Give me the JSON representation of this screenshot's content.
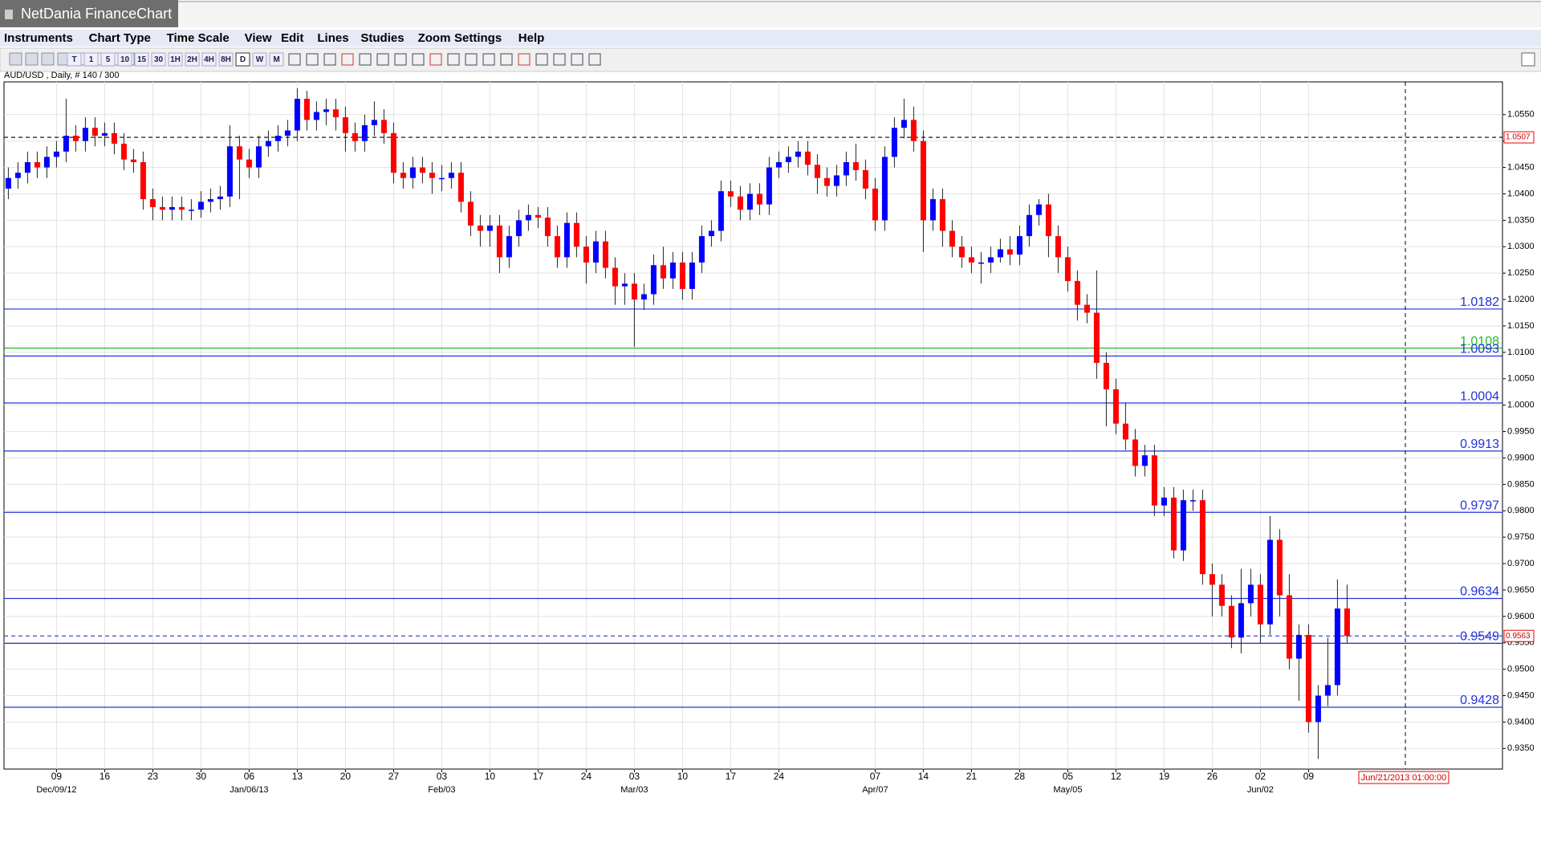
{
  "window": {
    "title": "NetDania FinanceChart"
  },
  "menu": [
    "Instruments",
    "Chart Type",
    "Time Scale",
    "View",
    "Edit",
    "Lines",
    "Studies",
    "Zoom",
    "Settings",
    "Help"
  ],
  "toolbar": {
    "buttons": [
      "T",
      "1",
      "5",
      "10",
      "15",
      "30",
      "1H",
      "2H",
      "4H",
      "8H",
      "D",
      "W",
      "M"
    ]
  },
  "chart_data": {
    "type": "candlestick",
    "subtitle": "AUD/USD , Daily, # 140 / 300",
    "up_color": "#0000ff",
    "down_color": "#ff0000",
    "grid": true,
    "categories": [
      null,
      null,
      null,
      null,
      null,
      "09",
      null,
      null,
      null,
      null,
      "16",
      null,
      null,
      null,
      null,
      "23",
      null,
      null,
      null,
      null,
      "30",
      null,
      null,
      null,
      null,
      "06",
      null,
      null,
      null,
      null,
      "13",
      null,
      null,
      null,
      null,
      "20",
      null,
      null,
      null,
      null,
      "27",
      null,
      null,
      null,
      null,
      "03",
      null,
      null,
      null,
      null,
      "10",
      null,
      null,
      null,
      null,
      "17",
      null,
      null,
      null,
      null,
      "24",
      null,
      null,
      null,
      null,
      "03",
      null,
      null,
      null,
      null,
      "10",
      null,
      null,
      null,
      null,
      "17",
      null,
      null,
      null,
      null,
      "24",
      null,
      null,
      null,
      null,
      null,
      null,
      null,
      null,
      null,
      "07",
      null,
      null,
      null,
      null,
      "14",
      null,
      null,
      null,
      null,
      "21",
      null,
      null,
      null,
      null,
      "28",
      null,
      null,
      null,
      null,
      "05",
      null,
      null,
      null,
      null,
      "12",
      null,
      null,
      null,
      null,
      "19",
      null,
      null,
      null,
      null,
      "26",
      null,
      null,
      null,
      null,
      "02",
      null,
      null,
      null,
      null,
      "09",
      null,
      null,
      null,
      null
    ],
    "periods": [
      null,
      null,
      null,
      null,
      null,
      "Dec/09/12",
      null,
      null,
      null,
      null,
      null,
      null,
      null,
      null,
      null,
      null,
      null,
      null,
      null,
      null,
      null,
      null,
      null,
      null,
      null,
      "Jan/06/13",
      null,
      null,
      null,
      null,
      null,
      null,
      null,
      null,
      null,
      null,
      null,
      null,
      null,
      null,
      null,
      null,
      null,
      null,
      null,
      "Feb/03",
      null,
      null,
      null,
      null,
      null,
      null,
      null,
      null,
      null,
      null,
      null,
      null,
      null,
      null,
      null,
      null,
      null,
      null,
      null,
      "Mar/03",
      null,
      null,
      null,
      null,
      null,
      null,
      null,
      null,
      null,
      null,
      null,
      null,
      null,
      null,
      null,
      null,
      null,
      null,
      null,
      null,
      null,
      null,
      null,
      null,
      "Apr/07",
      null,
      null,
      null,
      null,
      null,
      null,
      null,
      null,
      null,
      null,
      null,
      null,
      null,
      null,
      null,
      null,
      null,
      null,
      null,
      "May/05",
      null,
      null,
      null,
      null,
      null,
      null,
      null,
      null,
      null,
      null,
      null,
      null,
      null,
      null,
      null,
      null,
      null,
      null,
      null,
      "Jun/02",
      null,
      null,
      null,
      null,
      null,
      null,
      null,
      null,
      null
    ],
    "open": [
      1.041,
      1.043,
      1.044,
      1.046,
      1.045,
      1.047,
      1.048,
      1.051,
      1.05,
      1.0525,
      1.051,
      1.0515,
      1.0495,
      1.0465,
      1.046,
      1.039,
      1.0375,
      1.037,
      1.0375,
      1.037,
      1.037,
      1.0385,
      1.039,
      1.0395,
      1.049,
      1.0465,
      1.045,
      1.049,
      1.05,
      1.051,
      1.052,
      1.058,
      1.054,
      1.0555,
      1.056,
      1.0545,
      1.0515,
      1.05,
      1.053,
      1.054,
      1.0515,
      1.044,
      1.043,
      1.045,
      1.044,
      1.043,
      1.043,
      1.044,
      1.0385,
      1.034,
      1.033,
      1.034,
      1.028,
      1.032,
      1.035,
      1.036,
      1.0355,
      1.032,
      1.028,
      1.0345,
      1.03,
      1.027,
      1.031,
      1.026,
      1.0225,
      1.023,
      1.02,
      1.021,
      1.0265,
      1.024,
      1.027,
      1.022,
      1.027,
      1.032,
      1.033,
      1.0405,
      1.0395,
      1.037,
      1.04,
      1.038,
      1.045,
      1.046,
      1.047,
      1.048,
      1.0455,
      1.043,
      1.0415,
      1.0435,
      1.046,
      1.0445,
      1.041,
      1.035,
      1.047,
      1.0525,
      1.054,
      1.05,
      1.035,
      1.039,
      1.033,
      1.03,
      1.028,
      1.027,
      1.027,
      1.028,
      1.0295,
      1.0285,
      1.032,
      1.036,
      1.038,
      1.032,
      1.028,
      1.0235,
      1.019,
      1.0175,
      1.008,
      1.003,
      0.9965,
      0.9935,
      0.9885,
      0.9905,
      0.981,
      0.9825,
      0.9725,
      0.982,
      0.982,
      0.968,
      0.966,
      0.962,
      0.956,
      0.9625,
      0.966,
      0.9585,
      0.9745,
      0.964,
      0.952,
      0.9565,
      0.94,
      0.945,
      0.947,
      0.9615
    ],
    "high": [
      1.045,
      1.046,
      1.048,
      1.048,
      1.049,
      1.05,
      1.058,
      1.053,
      1.0545,
      1.0545,
      1.0535,
      1.0535,
      1.0515,
      1.0485,
      1.048,
      1.041,
      1.0395,
      1.0395,
      1.0395,
      1.039,
      1.0405,
      1.041,
      1.0415,
      1.053,
      1.051,
      1.0485,
      1.051,
      1.052,
      1.053,
      1.054,
      1.06,
      1.0595,
      1.0575,
      1.058,
      1.058,
      1.0565,
      1.0535,
      1.055,
      1.0575,
      1.056,
      1.0535,
      1.046,
      1.047,
      1.047,
      1.046,
      1.0455,
      1.046,
      1.046,
      1.0405,
      1.036,
      1.036,
      1.036,
      1.034,
      1.037,
      1.038,
      1.0375,
      1.0375,
      1.034,
      1.0365,
      1.0365,
      1.032,
      1.033,
      1.033,
      1.028,
      1.025,
      1.025,
      1.023,
      1.0285,
      1.03,
      1.029,
      1.029,
      1.029,
      1.034,
      1.035,
      1.0425,
      1.0425,
      1.0415,
      1.042,
      1.042,
      1.047,
      1.048,
      1.049,
      1.05,
      1.05,
      1.0475,
      1.045,
      1.0455,
      1.048,
      1.0495,
      1.0465,
      1.043,
      1.049,
      1.0545,
      1.058,
      1.0565,
      1.052,
      1.041,
      1.041,
      1.035,
      1.032,
      1.03,
      1.029,
      1.03,
      1.0315,
      1.032,
      1.034,
      1.038,
      1.039,
      1.04,
      1.034,
      1.03,
      1.0255,
      1.021,
      1.0255,
      1.01,
      1.005,
      1.0005,
      0.9955,
      0.9925,
      0.9925,
      0.9845,
      0.9845,
      0.984,
      0.984,
      0.984,
      0.97,
      0.968,
      0.964,
      0.969,
      0.969,
      0.968,
      0.979,
      0.9765,
      0.968,
      0.9585,
      0.9585,
      0.947,
      0.956,
      0.967,
      0.966
    ],
    "low": [
      1.039,
      1.041,
      1.042,
      1.043,
      1.043,
      1.045,
      1.046,
      1.048,
      1.048,
      1.049,
      1.049,
      1.0475,
      1.0445,
      1.044,
      1.037,
      1.035,
      1.035,
      1.035,
      1.035,
      1.035,
      1.0355,
      1.0365,
      1.037,
      1.0375,
      1.039,
      1.043,
      1.043,
      1.047,
      1.048,
      1.049,
      1.05,
      1.052,
      1.052,
      1.053,
      1.052,
      1.048,
      1.048,
      1.048,
      1.051,
      1.0495,
      1.042,
      1.041,
      1.041,
      1.042,
      1.04,
      1.0405,
      1.041,
      1.0365,
      1.032,
      1.03,
      1.03,
      1.025,
      1.026,
      1.03,
      1.033,
      1.0335,
      1.03,
      1.026,
      1.026,
      1.028,
      1.023,
      1.025,
      1.024,
      1.019,
      1.019,
      1.011,
      1.018,
      1.019,
      1.022,
      1.022,
      1.02,
      1.02,
      1.025,
      1.03,
      1.031,
      1.0375,
      1.035,
      1.035,
      1.036,
      1.036,
      1.043,
      1.044,
      1.045,
      1.0435,
      1.04,
      1.0395,
      1.0395,
      1.0415,
      1.0425,
      1.039,
      1.033,
      1.033,
      1.045,
      1.0505,
      1.048,
      1.029,
      1.033,
      1.03,
      1.028,
      1.026,
      1.025,
      1.023,
      1.025,
      1.027,
      1.0265,
      1.0265,
      1.03,
      1.034,
      1.028,
      1.025,
      1.0215,
      1.016,
      1.0155,
      1.005,
      0.996,
      0.9945,
      0.9915,
      0.9865,
      0.9865,
      0.979,
      0.979,
      0.971,
      0.9705,
      0.98,
      0.966,
      0.96,
      0.96,
      0.954,
      0.953,
      0.96,
      0.955,
      0.9565,
      0.96,
      0.95,
      0.944,
      0.938,
      0.933,
      0.943,
      0.945,
      0.955
    ],
    "close": [
      1.043,
      1.044,
      1.046,
      1.045,
      1.047,
      1.048,
      1.051,
      1.05,
      1.0525,
      1.051,
      1.0515,
      1.0495,
      1.0465,
      1.046,
      1.039,
      1.0375,
      1.037,
      1.0375,
      1.037,
      1.037,
      1.0385,
      1.039,
      1.0395,
      1.049,
      1.0465,
      1.045,
      1.049,
      1.05,
      1.051,
      1.052,
      1.058,
      1.054,
      1.0555,
      1.056,
      1.0545,
      1.0515,
      1.05,
      1.053,
      1.054,
      1.0515,
      1.044,
      1.043,
      1.045,
      1.044,
      1.043,
      1.043,
      1.044,
      1.0385,
      1.034,
      1.033,
      1.034,
      1.028,
      1.032,
      1.035,
      1.036,
      1.0355,
      1.032,
      1.028,
      1.0345,
      1.03,
      1.027,
      1.031,
      1.026,
      1.0225,
      1.023,
      1.02,
      1.021,
      1.0265,
      1.024,
      1.027,
      1.022,
      1.027,
      1.032,
      1.033,
      1.0405,
      1.0395,
      1.037,
      1.04,
      1.038,
      1.045,
      1.046,
      1.047,
      1.048,
      1.0455,
      1.043,
      1.0415,
      1.0435,
      1.046,
      1.0445,
      1.041,
      1.035,
      1.047,
      1.0525,
      1.054,
      1.05,
      1.035,
      1.039,
      1.033,
      1.03,
      1.028,
      1.027,
      1.027,
      1.028,
      1.0295,
      1.0285,
      1.032,
      1.036,
      1.038,
      1.032,
      1.028,
      1.0235,
      1.019,
      1.0175,
      1.008,
      1.003,
      0.9965,
      0.9935,
      0.9885,
      0.9905,
      0.981,
      0.9825,
      0.9725,
      0.982,
      0.982,
      0.968,
      0.966,
      0.962,
      0.956,
      0.9625,
      0.966,
      0.9585,
      0.9745,
      0.964,
      0.952,
      0.9565,
      0.94,
      0.945,
      0.947,
      0.9615,
      0.9563
    ],
    "ylim": [
      0.9311,
      1.0612
    ],
    "yticks": [
      {
        "value": 0.935,
        "label": "0.9350"
      },
      {
        "value": 0.94,
        "label": "0.9400"
      },
      {
        "value": 0.945,
        "label": "0.9450"
      },
      {
        "value": 0.95,
        "label": "0.9500"
      },
      {
        "value": 0.955,
        "label": "0.9550"
      },
      {
        "value": 0.96,
        "label": "0.9600"
      },
      {
        "value": 0.965,
        "label": "0.9650"
      },
      {
        "value": 0.97,
        "label": "0.9700"
      },
      {
        "value": 0.975,
        "label": "0.9750"
      },
      {
        "value": 0.98,
        "label": "0.9800"
      },
      {
        "value": 0.985,
        "label": "0.9850"
      },
      {
        "value": 0.99,
        "label": "0.9900"
      },
      {
        "value": 0.995,
        "label": "0.9950"
      },
      {
        "value": 1.0,
        "label": "1.0000"
      },
      {
        "value": 1.005,
        "label": "1.0050"
      },
      {
        "value": 1.01,
        "label": "1.0100"
      },
      {
        "value": 1.015,
        "label": "1.0150"
      },
      {
        "value": 1.02,
        "label": "1.0200"
      },
      {
        "value": 1.025,
        "label": "1.0250"
      },
      {
        "value": 1.03,
        "label": "1.0300"
      },
      {
        "value": 1.035,
        "label": "1.0350"
      },
      {
        "value": 1.04,
        "label": "1.0400"
      },
      {
        "value": 1.045,
        "label": "1.0450"
      },
      {
        "value": 1.05,
        "label": "1.0500"
      },
      {
        "value": 1.055,
        "label": "1.0550"
      }
    ],
    "levels": [
      {
        "value": 1.0182,
        "color": "#2233dd"
      },
      {
        "value": 1.0108,
        "color": "#22bb22"
      },
      {
        "value": 1.0093,
        "color": "#2233dd"
      },
      {
        "value": 1.0004,
        "color": "#2233dd"
      },
      {
        "value": 0.9913,
        "color": "#2233dd"
      },
      {
        "value": 0.9797,
        "color": "#2233dd"
      },
      {
        "value": 0.9634,
        "color": "#2233dd"
      },
      {
        "value": 0.9549,
        "color": "#2233dd"
      },
      {
        "value": 0.9428,
        "color": "#2233dd"
      }
    ],
    "price_markers": [
      {
        "value": 1.0507,
        "color": "#000000"
      },
      {
        "value": 0.9563,
        "color": "#2233dd"
      }
    ],
    "time_marker": {
      "label": "Jun/21/2013 01:00:00"
    }
  }
}
